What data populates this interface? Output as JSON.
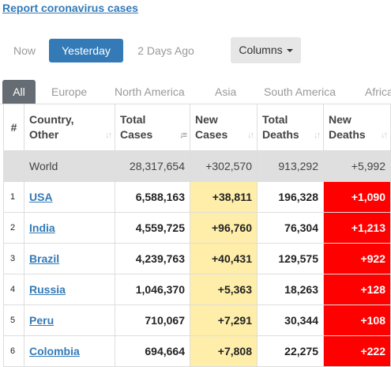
{
  "report_link": "Report coronavirus cases",
  "day_buttons": {
    "now": "Now",
    "yesterday": "Yesterday",
    "two_days": "2 Days Ago"
  },
  "columns_button": "Columns",
  "tabs": [
    "All",
    "Europe",
    "North America",
    "Asia",
    "South America",
    "Africa"
  ],
  "headers": {
    "idx": "#",
    "country": [
      "Country,",
      "Other"
    ],
    "total_cases": [
      "Total",
      "Cases"
    ],
    "new_cases": [
      "New",
      "Cases"
    ],
    "total_deaths": [
      "Total",
      "Deaths"
    ],
    "new_deaths": [
      "New",
      "Deaths"
    ]
  },
  "world": {
    "country": "World",
    "total_cases": "28,317,654",
    "new_cases": "+302,570",
    "total_deaths": "913,292",
    "new_deaths": "+5,992"
  },
  "rows": [
    {
      "idx": "1",
      "country": "USA",
      "total_cases": "6,588,163",
      "new_cases": "+38,811",
      "total_deaths": "196,328",
      "new_deaths": "+1,090"
    },
    {
      "idx": "2",
      "country": "India",
      "total_cases": "4,559,725",
      "new_cases": "+96,760",
      "total_deaths": "76,304",
      "new_deaths": "+1,213"
    },
    {
      "idx": "3",
      "country": "Brazil",
      "total_cases": "4,239,763",
      "new_cases": "+40,431",
      "total_deaths": "129,575",
      "new_deaths": "+922"
    },
    {
      "idx": "4",
      "country": "Russia",
      "total_cases": "1,046,370",
      "new_cases": "+5,363",
      "total_deaths": "18,263",
      "new_deaths": "+128"
    },
    {
      "idx": "5",
      "country": "Peru",
      "total_cases": "710,067",
      "new_cases": "+7,291",
      "total_deaths": "30,344",
      "new_deaths": "+108"
    },
    {
      "idx": "6",
      "country": "Colombia",
      "total_cases": "694,664",
      "new_cases": "+7,808",
      "total_deaths": "22,275",
      "new_deaths": "+222"
    }
  ],
  "colors": {
    "link": "#337ab7",
    "active_button": "#337ab7",
    "active_tab": "#666c73",
    "new_cases_bg": "#ffeeaa",
    "new_deaths_bg": "#ff0000",
    "world_row_bg": "#dfdfdf"
  }
}
